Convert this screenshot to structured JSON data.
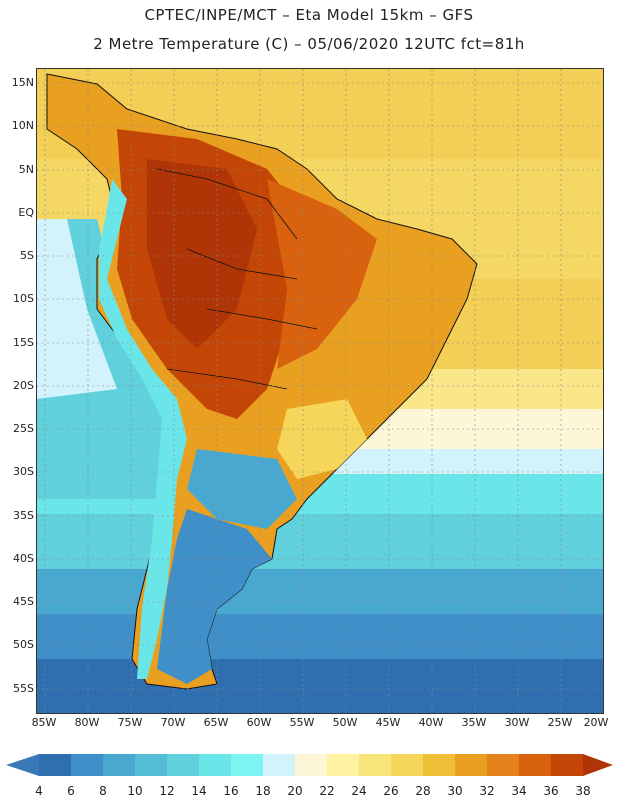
{
  "header": {
    "line1": "CPTEC/INPE/MCT –  Eta Model 15km – GFS",
    "line2": "2 Metre Temperature (C) – 05/06/2020 12UTC fct=81h"
  },
  "latitude_labels": [
    "15N",
    "10N",
    "5N",
    "EQ",
    "5S",
    "10S",
    "15S",
    "20S",
    "25S",
    "30S",
    "35S",
    "40S",
    "45S",
    "50S",
    "55S"
  ],
  "longitude_labels": [
    "85W",
    "80W",
    "75W",
    "70W",
    "65W",
    "60W",
    "55W",
    "50W",
    "45W",
    "40W",
    "35W",
    "30W",
    "25W",
    "20W"
  ],
  "colorbar": {
    "ticks": [
      "4",
      "6",
      "8",
      "10",
      "12",
      "14",
      "16",
      "18",
      "20",
      "22",
      "24",
      "26",
      "28",
      "30",
      "32",
      "34",
      "36",
      "38"
    ],
    "colors": [
      "#3a78b8",
      "#2f6fb0",
      "#3f8fc8",
      "#49a8cf",
      "#55bcd6",
      "#5fd0dc",
      "#6be6e8",
      "#7cf5f2",
      "#d2f3fb",
      "#fdf7d8",
      "#fcf2a0",
      "#f8e57a",
      "#f5d55a",
      "#eebe36",
      "#e9a020",
      "#e4821c",
      "#d8620e",
      "#c44606",
      "#b03506"
    ]
  }
}
